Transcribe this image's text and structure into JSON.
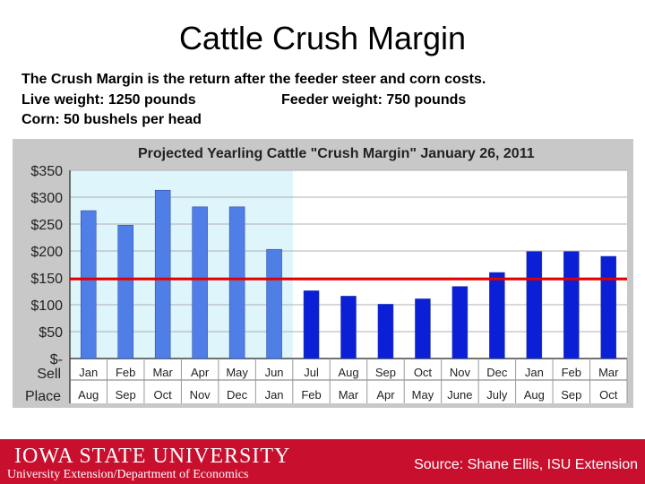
{
  "slide": {
    "title": "Cattle Crush Margin",
    "line1": "The Crush Margin is the return after the feeder steer and corn costs.",
    "line2a": "Live weight:  1250 pounds",
    "line2b": "Feeder weight:  750 pounds",
    "line3": "Corn:  50 bushels per head"
  },
  "footer": {
    "university": "IOWA STATE UNIVERSITY",
    "department": "University Extension/Department of Economics",
    "source": "Source: Shane Ellis, ISU Extension"
  },
  "colors": {
    "footer_red": "#c8102e",
    "bar_light": "#4f7ee6",
    "bar_dark": "#0a1fd6",
    "highlight": "#ddf5fb",
    "reference_line": "#e00000"
  },
  "chart_data": {
    "type": "bar",
    "title": "Projected Yearling Cattle \"Crush Margin\" January 26, 2011",
    "row_labels": [
      "Sell",
      "Place"
    ],
    "categories": [
      "Jan",
      "Feb",
      "Mar",
      "Apr",
      "May",
      "Jun",
      "Jul",
      "Aug",
      "Sep",
      "Oct",
      "Nov",
      "Dec",
      "Jan",
      "Feb",
      "Mar"
    ],
    "place_months": [
      "Aug",
      "Sep",
      "Oct",
      "Nov",
      "Dec",
      "Jan",
      "Feb",
      "Mar",
      "Apr",
      "May",
      "June",
      "July",
      "Aug",
      "Sep",
      "Oct"
    ],
    "values": [
      275,
      248,
      313,
      282,
      282,
      203,
      126,
      116,
      101,
      111,
      134,
      160,
      199,
      199,
      190
    ],
    "highlight_first_n": 6,
    "reference_value": 148,
    "ylim": [
      0,
      350
    ],
    "yticks": [
      0,
      50,
      100,
      150,
      200,
      250,
      300,
      350
    ],
    "ytick_labels": [
      "$-",
      "$50",
      "$100",
      "$150",
      "$200",
      "$250",
      "$300",
      "$350"
    ],
    "grid": true
  }
}
